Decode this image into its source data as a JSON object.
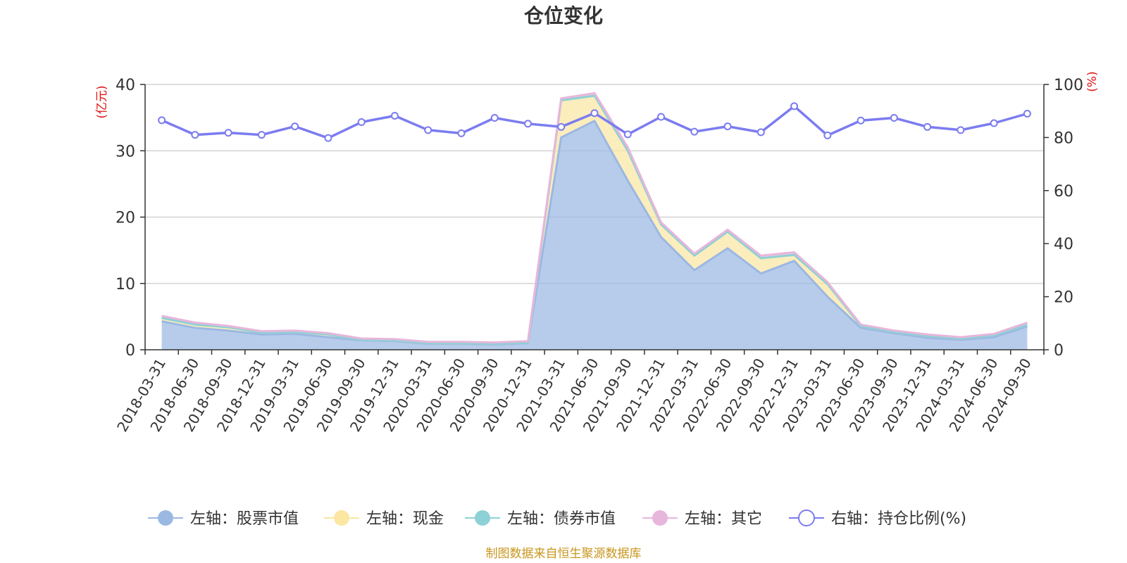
{
  "chart_data": {
    "type": "area",
    "title": "仓位变化",
    "source": "制图数据来自恒生聚源数据库",
    "left_axis": {
      "unit": "(亿元)",
      "range": [
        0,
        40
      ],
      "ticks": [
        0,
        10,
        20,
        30,
        40
      ]
    },
    "right_axis": {
      "unit": "(%)",
      "range": [
        0,
        100
      ],
      "ticks": [
        0,
        20,
        40,
        60,
        80,
        100
      ]
    },
    "grid": true,
    "legend_position": "bottom",
    "categories": [
      "2018-03-31",
      "2018-06-30",
      "2018-09-30",
      "2018-12-31",
      "2019-03-31",
      "2019-06-30",
      "2019-09-30",
      "2019-12-31",
      "2020-03-31",
      "2020-06-30",
      "2020-09-30",
      "2020-12-31",
      "2021-03-31",
      "2021-06-30",
      "2021-09-30",
      "2021-12-31",
      "2022-03-31",
      "2022-06-30",
      "2022-09-30",
      "2022-12-31",
      "2023-03-31",
      "2023-06-30",
      "2023-09-30",
      "2023-12-31",
      "2024-03-31",
      "2024-06-30",
      "2024-09-30"
    ],
    "series": [
      {
        "name": "左轴：股票市值",
        "axis": "left",
        "kind": "stack-area",
        "color": "#9bb8e3",
        "values": [
          4.3,
          3.3,
          2.9,
          2.3,
          2.4,
          1.9,
          1.4,
          1.3,
          0.9,
          0.9,
          0.8,
          1.0,
          32.0,
          34.5,
          25.5,
          17.0,
          12.0,
          15.3,
          11.5,
          13.4,
          8.0,
          3.3,
          2.5,
          1.8,
          1.5,
          1.9,
          3.5
        ]
      },
      {
        "name": "左轴：现金",
        "axis": "left",
        "kind": "stack-area",
        "color": "#fbe6a2",
        "values": [
          0.5,
          0.5,
          0.5,
          0.3,
          0.3,
          0.4,
          0.1,
          0.1,
          0.1,
          0.1,
          0.1,
          0.1,
          5.6,
          3.8,
          4.5,
          1.9,
          2.2,
          2.5,
          2.3,
          0.9,
          1.9,
          0.3,
          0.2,
          0.3,
          0.2,
          0.3,
          0.3
        ]
      },
      {
        "name": "左轴：债券市值",
        "axis": "left",
        "kind": "stack-area",
        "color": "#8dd1d6",
        "values": [
          0,
          0,
          0,
          0,
          0,
          0,
          0,
          0,
          0,
          0,
          0,
          0,
          0,
          0,
          0,
          0,
          0,
          0,
          0,
          0,
          0,
          0,
          0,
          0,
          0,
          0,
          0
        ]
      },
      {
        "name": "左轴：其它",
        "axis": "left",
        "kind": "stack-area",
        "color": "#e7b6db",
        "values": [
          0.3,
          0.3,
          0.2,
          0.2,
          0.2,
          0.2,
          0.2,
          0.2,
          0.2,
          0.2,
          0.2,
          0.2,
          0.3,
          0.4,
          0.5,
          0.3,
          0.3,
          0.3,
          0.4,
          0.4,
          0.3,
          0.2,
          0.2,
          0.2,
          0.2,
          0.2,
          0.3
        ]
      },
      {
        "name": "右轴：持仓比例(%)",
        "axis": "right",
        "kind": "line",
        "color": "#7b7cf0",
        "values": [
          86.5,
          81.0,
          81.8,
          81.0,
          84.2,
          79.8,
          85.8,
          88.2,
          82.8,
          81.6,
          87.4,
          85.2,
          84.0,
          89.2,
          81.2,
          87.8,
          82.2,
          84.2,
          82.0,
          91.8,
          80.8,
          86.4,
          87.4,
          84.0,
          82.8,
          85.4,
          89.0
        ]
      }
    ]
  }
}
